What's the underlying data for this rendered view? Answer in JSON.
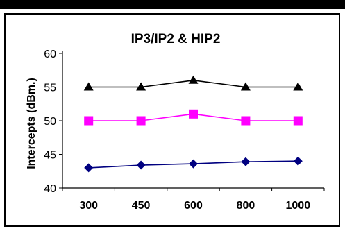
{
  "chart_data": {
    "type": "line",
    "title": "IP3/IP2 & HIP2",
    "xlabel": "",
    "ylabel": "Intercepts (dBm.)",
    "categories": [
      "300",
      "450",
      "600",
      "800",
      "1000"
    ],
    "ylim": [
      40,
      60
    ],
    "yticks": [
      "40",
      "45",
      "50",
      "55",
      "60"
    ],
    "grid": false,
    "legend": "none",
    "series": [
      {
        "color": "#000000",
        "marker": "triangle",
        "values": [
          55,
          55,
          56,
          55,
          55
        ]
      },
      {
        "color": "#ff00ff",
        "marker": "square",
        "values": [
          50,
          50,
          51,
          50,
          50
        ]
      },
      {
        "color": "#000080",
        "marker": "diamond",
        "values": [
          43,
          43.4,
          43.6,
          43.9,
          44
        ]
      }
    ]
  }
}
